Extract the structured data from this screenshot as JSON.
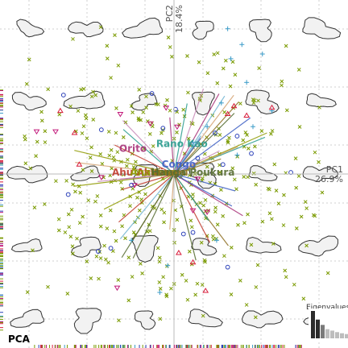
{
  "chart_data": {
    "type": "scatter",
    "title": "PCA",
    "axes": {
      "pc1": {
        "label": "PC1",
        "variance": "26.9%"
      },
      "pc2": {
        "label": "PC2",
        "variance": "18.4%"
      }
    },
    "xlim": [
      -1.0,
      1.0
    ],
    "ylim": [
      -1.0,
      1.0
    ],
    "grid": true,
    "legend": "none",
    "group_labels": [
      {
        "name": "Rano Kao",
        "x": 0.05,
        "y": 0.17,
        "color": "#2a9d8f"
      },
      {
        "name": "Orito",
        "x": -0.26,
        "y": 0.14,
        "color": "#a83279"
      },
      {
        "name": "Congo",
        "x": 0.03,
        "y": 0.04,
        "color": "#3d5fc4"
      },
      {
        "name": "Ahu Akivi",
        "x": -0.23,
        "y": -0.01,
        "color": "#c0392b"
      },
      {
        "name": "Anakena",
        "x": -0.13,
        "y": -0.01,
        "color": "#8f9a00"
      },
      {
        "name": "Vinapu",
        "x": -0.03,
        "y": -0.01,
        "color": "#8c6d1f"
      },
      {
        "name": "Hanga Poukura",
        "x": 0.12,
        "y": -0.01,
        "color": "#556b2f"
      }
    ],
    "series": [
      {
        "name": "Rano Kao",
        "marker": "plus",
        "color": "#3a9bc8",
        "points": [
          [
            0.34,
            0.92
          ],
          [
            0.43,
            0.82
          ],
          [
            0.56,
            0.76
          ],
          [
            0.36,
            0.73
          ],
          [
            0.46,
            0.58
          ],
          [
            0.62,
            0.4
          ],
          [
            0.3,
            0.45
          ],
          [
            0.21,
            0.3
          ],
          [
            -0.27,
            -0.42
          ],
          [
            -0.04,
            -0.58
          ],
          [
            -0.09,
            -0.75
          ],
          [
            0.27,
            -0.42
          ],
          [
            0.4,
            0.12
          ],
          [
            0.12,
            0.2
          ],
          [
            0.5,
            0.3
          ]
        ]
      },
      {
        "name": "Orito",
        "marker": "triangle-down",
        "color": "#c2187a",
        "points": [
          [
            -0.87,
            0.27
          ],
          [
            -0.75,
            0.27
          ],
          [
            -0.34,
            0.38
          ],
          [
            -0.15,
            0.32
          ],
          [
            -0.25,
            -0.07
          ],
          [
            0.12,
            -0.23
          ],
          [
            0.21,
            -0.24
          ],
          [
            -0.36,
            -0.72
          ],
          [
            -0.05,
            0.42
          ],
          [
            0.02,
            0.3
          ],
          [
            -0.46,
            -0.02
          ],
          [
            0.15,
            -0.03
          ]
        ]
      },
      {
        "name": "Congo",
        "marker": "circle",
        "color": "#2a3fb8",
        "points": [
          [
            -0.14,
            0.51
          ],
          [
            -0.7,
            0.5
          ],
          [
            -0.46,
            0.28
          ],
          [
            -0.67,
            -0.13
          ],
          [
            -0.27,
            -0.07
          ],
          [
            -0.48,
            -0.49
          ],
          [
            0.06,
            -0.38
          ],
          [
            0.12,
            -0.37
          ],
          [
            -0.4,
            -0.47
          ],
          [
            0.34,
            -0.59
          ],
          [
            0.49,
            0.13
          ],
          [
            0.74,
            0.01
          ],
          [
            0.01,
            0.41
          ],
          [
            -0.07,
            0.29
          ],
          [
            0.31,
            0.06
          ],
          [
            0.15,
            0.1
          ],
          [
            0.4,
            0.24
          ],
          [
            0.26,
            0.26
          ]
        ]
      },
      {
        "name": "Ahu Akivi",
        "marker": "triangle-up",
        "color": "#d81b3a",
        "points": [
          [
            0.62,
            0.42
          ],
          [
            -0.72,
            0.4
          ],
          [
            -0.6,
            0.06
          ],
          [
            0.38,
            0.43
          ],
          [
            0.03,
            -0.5
          ],
          [
            0.12,
            -0.56
          ],
          [
            0.46,
            0.37
          ],
          [
            0.34,
            0.38
          ],
          [
            0.2,
            -0.74
          ],
          [
            -0.63,
            0.26
          ]
        ]
      }
    ],
    "variables_count": 40,
    "eigenvalues": {
      "label": "Eigenvalues",
      "values": [
        26.9,
        18.4,
        13.2,
        9.0,
        7.6,
        6.1,
        5.0,
        4.2
      ]
    }
  }
}
